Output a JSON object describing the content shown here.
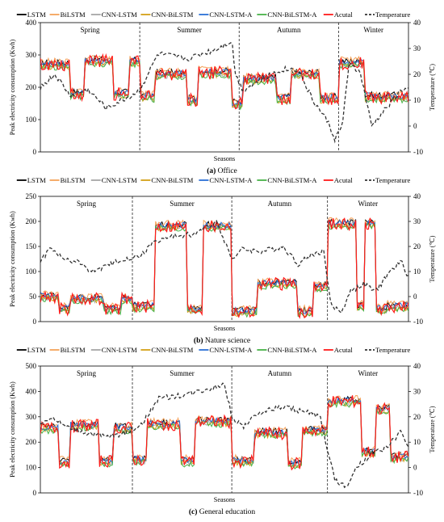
{
  "legend_items": [
    {
      "label": "LSTM",
      "color": "#000000",
      "dash": false
    },
    {
      "label": "BiLSTM",
      "color": "#f4a259",
      "dash": false
    },
    {
      "label": "CNN-LSTM",
      "color": "#a6a6a6",
      "dash": false
    },
    {
      "label": "CNN-BiLSTM",
      "color": "#d4a017",
      "dash": false
    },
    {
      "label": "CNN-LSTM-A",
      "color": "#2a6fd6",
      "dash": false
    },
    {
      "label": "CNN-BiLSTM-A",
      "color": "#47b247",
      "dash": false
    },
    {
      "label": "Acutal",
      "color": "#ff1a1a",
      "dash": false
    },
    {
      "label": "Temperature",
      "color": "#333333",
      "dash": true
    }
  ],
  "season_labels": [
    "Spring",
    "Summer",
    "Autumn",
    "Winter"
  ],
  "xlabel": "Seasons",
  "ylabel_left": "Peak electricity consumption (Kwh)",
  "ylabel_right": "Temperature (℃)",
  "chart_data": [
    {
      "type": "line",
      "caption_tag": "(a)",
      "caption_text": "Office",
      "ylim": [
        0,
        400
      ],
      "yticks": [
        0,
        100,
        200,
        300,
        400
      ],
      "y2lim": [
        -10,
        40
      ],
      "y2ticks": [
        -10,
        0,
        10,
        20,
        30,
        40
      ],
      "season_bounds": [
        0.27,
        0.54,
        0.81
      ],
      "blocks": [
        {
          "a": 0.0,
          "b": 0.08,
          "v": 270
        },
        {
          "a": 0.08,
          "b": 0.12,
          "v": 180
        },
        {
          "a": 0.12,
          "b": 0.2,
          "v": 280
        },
        {
          "a": 0.2,
          "b": 0.24,
          "v": 180
        },
        {
          "a": 0.24,
          "b": 0.27,
          "v": 278
        },
        {
          "a": 0.27,
          "b": 0.31,
          "v": 170
        },
        {
          "a": 0.31,
          "b": 0.4,
          "v": 240
        },
        {
          "a": 0.4,
          "b": 0.43,
          "v": 160
        },
        {
          "a": 0.43,
          "b": 0.52,
          "v": 245
        },
        {
          "a": 0.52,
          "b": 0.55,
          "v": 150
        },
        {
          "a": 0.55,
          "b": 0.64,
          "v": 225
        },
        {
          "a": 0.64,
          "b": 0.68,
          "v": 165
        },
        {
          "a": 0.68,
          "b": 0.76,
          "v": 240
        },
        {
          "a": 0.76,
          "b": 0.81,
          "v": 165
        },
        {
          "a": 0.81,
          "b": 0.88,
          "v": 275
        },
        {
          "a": 0.88,
          "b": 0.92,
          "v": 170
        },
        {
          "a": 0.92,
          "b": 1.0,
          "v": 170
        }
      ],
      "temperature": [
        [
          0,
          15
        ],
        [
          0.04,
          20
        ],
        [
          0.08,
          12
        ],
        [
          0.13,
          14
        ],
        [
          0.18,
          7
        ],
        [
          0.25,
          12
        ],
        [
          0.27,
          14
        ],
        [
          0.32,
          28
        ],
        [
          0.4,
          26
        ],
        [
          0.48,
          30
        ],
        [
          0.52,
          33
        ],
        [
          0.53,
          20
        ],
        [
          0.55,
          14
        ],
        [
          0.6,
          18
        ],
        [
          0.66,
          22
        ],
        [
          0.7,
          22
        ],
        [
          0.74,
          10
        ],
        [
          0.78,
          2
        ],
        [
          0.8,
          -5
        ],
        [
          0.82,
          0
        ],
        [
          0.84,
          25
        ],
        [
          0.87,
          20
        ],
        [
          0.9,
          0
        ],
        [
          0.94,
          7
        ],
        [
          0.98,
          14
        ],
        [
          1.0,
          14
        ]
      ]
    },
    {
      "type": "line",
      "caption_tag": "(b)",
      "caption_text": "Nature science",
      "ylim": [
        0,
        250
      ],
      "yticks": [
        0,
        50,
        100,
        150,
        200,
        250
      ],
      "y2lim": [
        -10,
        40
      ],
      "y2ticks": [
        -10,
        0,
        10,
        20,
        30,
        40
      ],
      "season_bounds": [
        0.25,
        0.52,
        0.78
      ],
      "blocks": [
        {
          "a": 0.0,
          "b": 0.05,
          "v": 50
        },
        {
          "a": 0.05,
          "b": 0.08,
          "v": 25
        },
        {
          "a": 0.08,
          "b": 0.17,
          "v": 45
        },
        {
          "a": 0.17,
          "b": 0.22,
          "v": 25
        },
        {
          "a": 0.22,
          "b": 0.25,
          "v": 45
        },
        {
          "a": 0.25,
          "b": 0.31,
          "v": 30
        },
        {
          "a": 0.31,
          "b": 0.4,
          "v": 190
        },
        {
          "a": 0.4,
          "b": 0.44,
          "v": 25
        },
        {
          "a": 0.44,
          "b": 0.52,
          "v": 190
        },
        {
          "a": 0.52,
          "b": 0.59,
          "v": 20
        },
        {
          "a": 0.59,
          "b": 0.7,
          "v": 75
        },
        {
          "a": 0.7,
          "b": 0.74,
          "v": 20
        },
        {
          "a": 0.74,
          "b": 0.78,
          "v": 70
        },
        {
          "a": 0.78,
          "b": 0.86,
          "v": 195
        },
        {
          "a": 0.86,
          "b": 0.88,
          "v": 30
        },
        {
          "a": 0.88,
          "b": 0.91,
          "v": 195
        },
        {
          "a": 0.91,
          "b": 0.94,
          "v": 25
        },
        {
          "a": 0.94,
          "b": 1.0,
          "v": 30
        }
      ],
      "temperature": [
        [
          0,
          14
        ],
        [
          0.03,
          20
        ],
        [
          0.06,
          15
        ],
        [
          0.1,
          14
        ],
        [
          0.14,
          10
        ],
        [
          0.18,
          12
        ],
        [
          0.22,
          15
        ],
        [
          0.27,
          16
        ],
        [
          0.31,
          22
        ],
        [
          0.36,
          24
        ],
        [
          0.42,
          25
        ],
        [
          0.48,
          30
        ],
        [
          0.52,
          15
        ],
        [
          0.55,
          19
        ],
        [
          0.6,
          18
        ],
        [
          0.66,
          20
        ],
        [
          0.7,
          13
        ],
        [
          0.74,
          17
        ],
        [
          0.77,
          18
        ],
        [
          0.79,
          -4
        ],
        [
          0.82,
          -6
        ],
        [
          0.84,
          2
        ],
        [
          0.88,
          5
        ],
        [
          0.91,
          2
        ],
        [
          0.95,
          10
        ],
        [
          0.98,
          14
        ],
        [
          1.0,
          8
        ]
      ]
    },
    {
      "type": "line",
      "caption_tag": "(c)",
      "caption_text": "General education",
      "ylim": [
        0,
        500
      ],
      "yticks": [
        0,
        100,
        200,
        300,
        400,
        500
      ],
      "y2lim": [
        -10,
        40
      ],
      "y2ticks": [
        -10,
        0,
        10,
        20,
        30,
        40
      ],
      "season_bounds": [
        0.25,
        0.52,
        0.78
      ],
      "blocks": [
        {
          "a": 0.0,
          "b": 0.05,
          "v": 255
        },
        {
          "a": 0.05,
          "b": 0.08,
          "v": 120
        },
        {
          "a": 0.08,
          "b": 0.16,
          "v": 265
        },
        {
          "a": 0.16,
          "b": 0.2,
          "v": 125
        },
        {
          "a": 0.2,
          "b": 0.25,
          "v": 255
        },
        {
          "a": 0.25,
          "b": 0.29,
          "v": 130
        },
        {
          "a": 0.29,
          "b": 0.38,
          "v": 270
        },
        {
          "a": 0.38,
          "b": 0.42,
          "v": 125
        },
        {
          "a": 0.42,
          "b": 0.52,
          "v": 280
        },
        {
          "a": 0.52,
          "b": 0.58,
          "v": 125
        },
        {
          "a": 0.58,
          "b": 0.67,
          "v": 235
        },
        {
          "a": 0.67,
          "b": 0.71,
          "v": 115
        },
        {
          "a": 0.71,
          "b": 0.78,
          "v": 245
        },
        {
          "a": 0.78,
          "b": 0.87,
          "v": 360
        },
        {
          "a": 0.87,
          "b": 0.91,
          "v": 160
        },
        {
          "a": 0.91,
          "b": 0.95,
          "v": 330
        },
        {
          "a": 0.95,
          "b": 1.0,
          "v": 140
        }
      ],
      "temperature": [
        [
          0,
          17
        ],
        [
          0.03,
          20
        ],
        [
          0.07,
          16
        ],
        [
          0.12,
          14
        ],
        [
          0.18,
          12
        ],
        [
          0.24,
          14
        ],
        [
          0.28,
          18
        ],
        [
          0.32,
          27
        ],
        [
          0.4,
          29
        ],
        [
          0.48,
          32
        ],
        [
          0.5,
          33
        ],
        [
          0.52,
          20
        ],
        [
          0.55,
          16
        ],
        [
          0.6,
          22
        ],
        [
          0.66,
          24
        ],
        [
          0.72,
          22
        ],
        [
          0.76,
          20
        ],
        [
          0.8,
          -5
        ],
        [
          0.83,
          -8
        ],
        [
          0.86,
          0
        ],
        [
          0.9,
          5
        ],
        [
          0.94,
          8
        ],
        [
          0.98,
          14
        ],
        [
          1.0,
          8
        ]
      ]
    }
  ]
}
